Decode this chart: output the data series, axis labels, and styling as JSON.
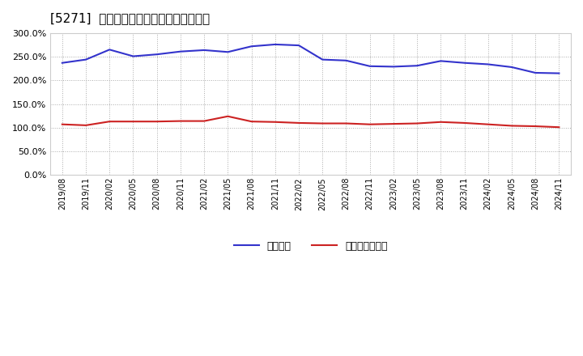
{
  "title": "[5271]  固定比率、固定長期適合率の推移",
  "x_labels": [
    "2019/08",
    "2019/11",
    "2020/02",
    "2020/05",
    "2020/08",
    "2020/11",
    "2021/02",
    "2021/05",
    "2021/08",
    "2021/11",
    "2022/02",
    "2022/05",
    "2022/08",
    "2022/11",
    "2023/02",
    "2023/05",
    "2023/08",
    "2023/11",
    "2024/02",
    "2024/05",
    "2024/08",
    "2024/11"
  ],
  "fixed_ratio": [
    237,
    244,
    265,
    251,
    255,
    261,
    264,
    260,
    272,
    276,
    274,
    244,
    242,
    230,
    229,
    231,
    241,
    237,
    234,
    228,
    216,
    215
  ],
  "fixed_long_ratio": [
    107,
    105,
    113,
    113,
    113,
    114,
    114,
    124,
    113,
    112,
    110,
    109,
    109,
    107,
    108,
    109,
    112,
    110,
    107,
    104,
    103,
    101
  ],
  "blue_color": "#3333cc",
  "red_color": "#cc2222",
  "bg_color": "#ffffff",
  "plot_bg_color": "#ffffff",
  "grid_color": "#aaaaaa",
  "legend_blue": "固定比率",
  "legend_red": "固定長期適合率",
  "ylim": [
    0,
    300
  ],
  "yticks": [
    0.0,
    50.0,
    100.0,
    150.0,
    200.0,
    250.0,
    300.0
  ]
}
